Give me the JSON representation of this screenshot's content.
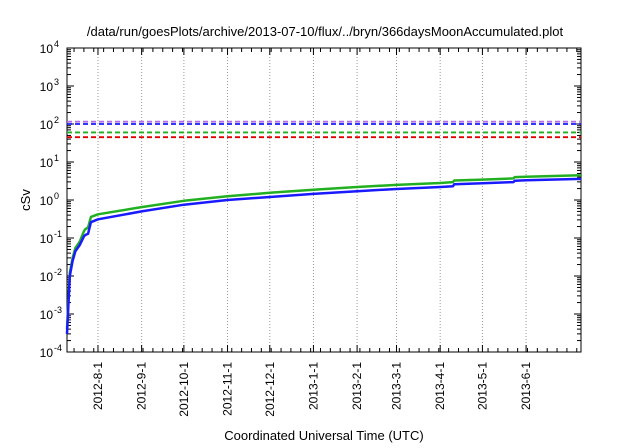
{
  "chart_data": {
    "type": "line",
    "title": "/data/run/goesPlots/archive/2013-07-10/flux/../bryn/366daysMoonAccumulated.plot",
    "xlabel": "Coordinated Universal Time (UTC)",
    "ylabel": "cSv",
    "yscale": "log",
    "ylim": [
      0.0001,
      10000
    ],
    "xlim": [
      "2012-07-10",
      "2013-07-10"
    ],
    "grid": true,
    "y_ticks": [
      {
        "value": 0.0001,
        "mantissa": "10",
        "exp": "-4"
      },
      {
        "value": 0.001,
        "mantissa": "10",
        "exp": "-3"
      },
      {
        "value": 0.01,
        "mantissa": "10",
        "exp": "-2"
      },
      {
        "value": 0.1,
        "mantissa": "10",
        "exp": "-1"
      },
      {
        "value": 1,
        "mantissa": "10",
        "exp": "0"
      },
      {
        "value": 10,
        "mantissa": "10",
        "exp": "1"
      },
      {
        "value": 100,
        "mantissa": "10",
        "exp": "2"
      },
      {
        "value": 1000,
        "mantissa": "10",
        "exp": "3"
      },
      {
        "value": 10000,
        "mantissa": "10",
        "exp": "4"
      }
    ],
    "x_ticks": [
      "2012-8-1",
      "2012-9-1",
      "2012-10-1",
      "2012-11-1",
      "2012-12-1",
      "2013-1-1",
      "2013-2-1",
      "2013-3-1",
      "2013-4-1",
      "2013-5-1",
      "2013-6-1"
    ],
    "x_tick_dates": [
      "2012-08-01",
      "2012-09-01",
      "2012-10-01",
      "2012-11-01",
      "2012-12-01",
      "2013-01-01",
      "2013-02-01",
      "2013-03-01",
      "2013-04-01",
      "2013-05-01",
      "2013-06-01"
    ],
    "series": [
      {
        "color": "#22b022",
        "width": 2.5,
        "x": [
          "2012-07-10",
          "2012-07-12",
          "2012-07-14",
          "2012-07-16",
          "2012-07-19",
          "2012-07-22",
          "2012-07-23",
          "2012-07-25",
          "2012-07-27",
          "2012-08-01",
          "2012-09-01",
          "2012-10-01",
          "2012-11-01",
          "2012-12-01",
          "2013-01-01",
          "2013-02-01",
          "2013-03-01",
          "2013-04-01",
          "2013-04-10",
          "2013-04-11",
          "2013-05-01",
          "2013-05-23",
          "2013-05-24",
          "2013-06-01",
          "2013-07-10"
        ],
        "y": [
          0.0004,
          0.012,
          0.03,
          0.055,
          0.08,
          0.15,
          0.17,
          0.19,
          0.36,
          0.42,
          0.65,
          0.95,
          1.25,
          1.55,
          1.85,
          2.2,
          2.5,
          2.8,
          2.95,
          3.25,
          3.45,
          3.7,
          4.0,
          4.1,
          4.5
        ]
      },
      {
        "color": "#1a1aff",
        "width": 2.5,
        "x": [
          "2012-07-10",
          "2012-07-12",
          "2012-07-14",
          "2012-07-16",
          "2012-07-19",
          "2012-07-22",
          "2012-07-23",
          "2012-07-25",
          "2012-07-27",
          "2012-08-01",
          "2012-09-01",
          "2012-10-01",
          "2012-11-01",
          "2012-12-01",
          "2013-01-01",
          "2013-02-01",
          "2013-03-01",
          "2013-04-01",
          "2013-04-10",
          "2013-04-11",
          "2013-05-01",
          "2013-05-23",
          "2013-05-24",
          "2013-06-01",
          "2013-07-10"
        ],
        "y": [
          0.0003,
          0.01,
          0.025,
          0.045,
          0.065,
          0.11,
          0.12,
          0.13,
          0.26,
          0.31,
          0.5,
          0.75,
          1.0,
          1.2,
          1.45,
          1.7,
          1.95,
          2.2,
          2.3,
          2.6,
          2.75,
          2.95,
          3.2,
          3.3,
          3.6
        ]
      }
    ],
    "limits": [
      {
        "y": 115,
        "color": "#b56fe6",
        "dash": "5,3"
      },
      {
        "y": 100,
        "color": "#1a1aff",
        "dash": "5,3"
      },
      {
        "y": 60,
        "color": "#22b022",
        "dash": "5,3"
      },
      {
        "y": 45,
        "color": "#e00000",
        "dash": "5,3"
      }
    ]
  }
}
